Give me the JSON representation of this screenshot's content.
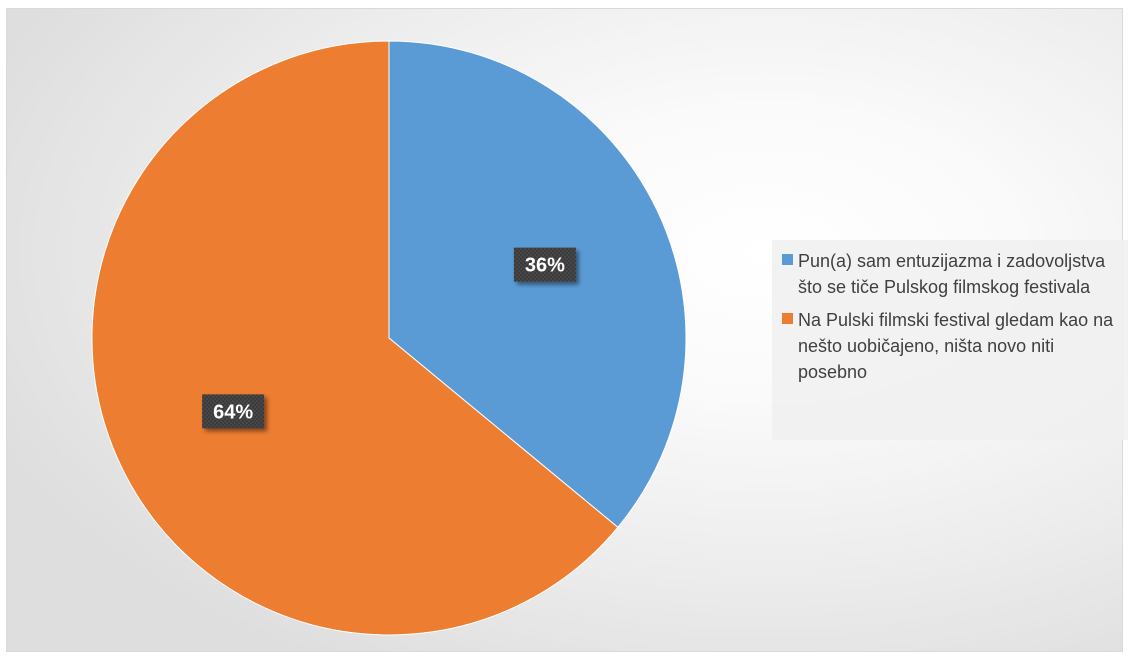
{
  "chart_data": {
    "type": "pie",
    "title": "",
    "slices": [
      {
        "label": "Pun(a) sam entuzijazma i zadovoljstva što se tiče Pulskog filmskog festivala",
        "value": 36,
        "display": "36%",
        "color": "#5b9bd5"
      },
      {
        "label": "Na Pulski filmski festival gledam kao na nešto uobičajeno, ništa novo niti posebno",
        "value": 64,
        "display": "64%",
        "color": "#ed7d31"
      }
    ],
    "start_angle_deg": 0,
    "direction": "clockwise",
    "legend_position": "right"
  }
}
